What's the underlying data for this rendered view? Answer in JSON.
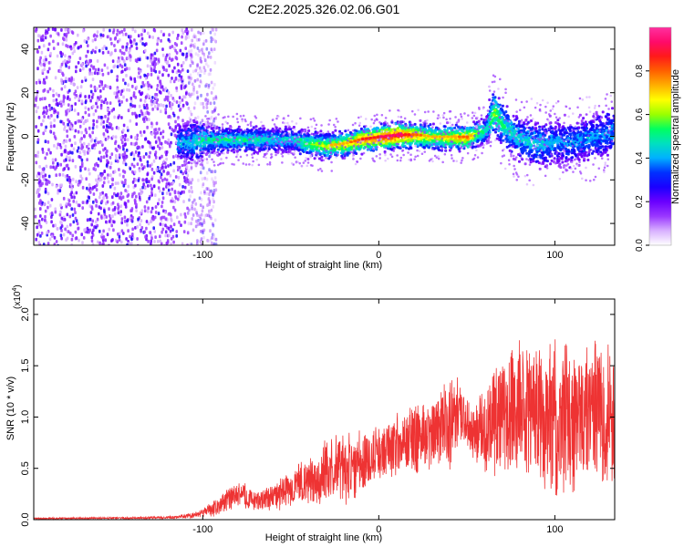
{
  "title": "C2E2.2025.326.02.06.G01",
  "colors": {
    "snr_line": "#ee3333",
    "colormap": [
      "#ffffff",
      "#d8b0ff",
      "#9a38ff",
      "#6a00ff",
      "#1a00ff",
      "#0030ff",
      "#00b0ff",
      "#00e0c0",
      "#00ff60",
      "#9aff00",
      "#ffff00",
      "#ffb000",
      "#ff6000",
      "#ff1a1a",
      "#ff0a6a",
      "#ff30a0"
    ]
  },
  "chart_data": [
    {
      "type": "heatmap",
      "title": "C2E2.2025.326.02.06.G01",
      "xlabel": "Height of straight line (km)",
      "ylabel": "Frequency (Hz)",
      "xlim": [
        -196,
        134
      ],
      "ylim": [
        -50,
        50
      ],
      "xticks": [
        {
          "value": -100,
          "label": "-100"
        },
        {
          "value": 0,
          "label": "0"
        },
        {
          "value": 100,
          "label": "100"
        }
      ],
      "yticks": [
        {
          "value": -40,
          "label": "-40"
        },
        {
          "value": -20,
          "label": "-20"
        },
        {
          "value": 0,
          "label": "0"
        },
        {
          "value": 20,
          "label": "20"
        },
        {
          "value": 40,
          "label": "40"
        }
      ],
      "colorbar": {
        "label": "Normalized spectral amplitude",
        "range": [
          0,
          1
        ],
        "ticks": [
          {
            "value": 0.0,
            "label": "0.0"
          },
          {
            "value": 0.2,
            "label": "0.2"
          },
          {
            "value": 0.4,
            "label": "0.4"
          },
          {
            "value": 0.6,
            "label": "0.6"
          },
          {
            "value": 0.8,
            "label": "0.8"
          }
        ]
      },
      "ridge": {
        "x": [
          -115,
          -100,
          -90,
          -80,
          -70,
          -60,
          -50,
          -40,
          -30,
          -20,
          -10,
          0,
          10,
          20,
          30,
          40,
          50,
          55,
          60,
          65,
          70,
          80,
          90,
          100,
          110,
          120,
          134
        ],
        "freq": [
          -3,
          -1,
          -1,
          -1,
          -1,
          -1,
          -1,
          -3,
          -4,
          -3,
          -1,
          0,
          1,
          1,
          0,
          0,
          0,
          2,
          3,
          12,
          5,
          -1,
          -3,
          -2,
          -2,
          0,
          3
        ],
        "peak_amplitude": [
          0.35,
          0.45,
          0.45,
          0.45,
          0.45,
          0.4,
          0.4,
          0.55,
          0.6,
          0.65,
          0.75,
          0.8,
          0.85,
          0.7,
          0.6,
          0.65,
          0.7,
          0.55,
          0.45,
          0.55,
          0.45,
          0.4,
          0.4,
          0.35,
          0.35,
          0.35,
          0.35
        ]
      },
      "noise_region_x": [
        -196,
        -105
      ]
    },
    {
      "type": "line",
      "xlabel": "Height of straight line (km)",
      "ylabel": "SNR (10 * v/v)",
      "scale_label": "(x10",
      "scale_exp": "4",
      "scale_close": ")",
      "xlim": [
        -196,
        134
      ],
      "ylim": [
        0,
        2.15
      ],
      "xticks": [
        {
          "value": -100,
          "label": "-100"
        },
        {
          "value": 0,
          "label": "0"
        },
        {
          "value": 100,
          "label": "100"
        }
      ],
      "yticks": [
        {
          "value": 0.0,
          "label": "0.0"
        },
        {
          "value": 0.5,
          "label": "0.5"
        },
        {
          "value": 1.0,
          "label": "1.0"
        },
        {
          "value": 1.5,
          "label": "1.5"
        },
        {
          "value": 2.0,
          "label": "2.0"
        }
      ],
      "series": [
        {
          "envelope_x": [
            -196,
            -150,
            -120,
            -105,
            -95,
            -85,
            -78,
            -70,
            -60,
            -50,
            -40,
            -30,
            -20,
            -10,
            0,
            10,
            20,
            30,
            40,
            45,
            50,
            55,
            60,
            70,
            80,
            90,
            100,
            110,
            120,
            134
          ],
          "envelope_mean": [
            0.01,
            0.015,
            0.02,
            0.04,
            0.1,
            0.2,
            0.25,
            0.18,
            0.22,
            0.3,
            0.38,
            0.45,
            0.52,
            0.55,
            0.65,
            0.75,
            0.78,
            0.85,
            0.95,
            1.05,
            0.95,
            0.85,
            0.9,
            1.0,
            1.05,
            1.05,
            0.95,
            0.95,
            1.0,
            1.0
          ],
          "envelope_amplitude": [
            0.01,
            0.01,
            0.015,
            0.03,
            0.08,
            0.12,
            0.15,
            0.1,
            0.15,
            0.2,
            0.25,
            0.35,
            0.4,
            0.35,
            0.3,
            0.35,
            0.4,
            0.35,
            0.5,
            0.35,
            0.25,
            0.3,
            0.5,
            0.7,
            0.75,
            0.75,
            0.9,
            0.75,
            0.8,
            0.75
          ]
        }
      ]
    }
  ]
}
